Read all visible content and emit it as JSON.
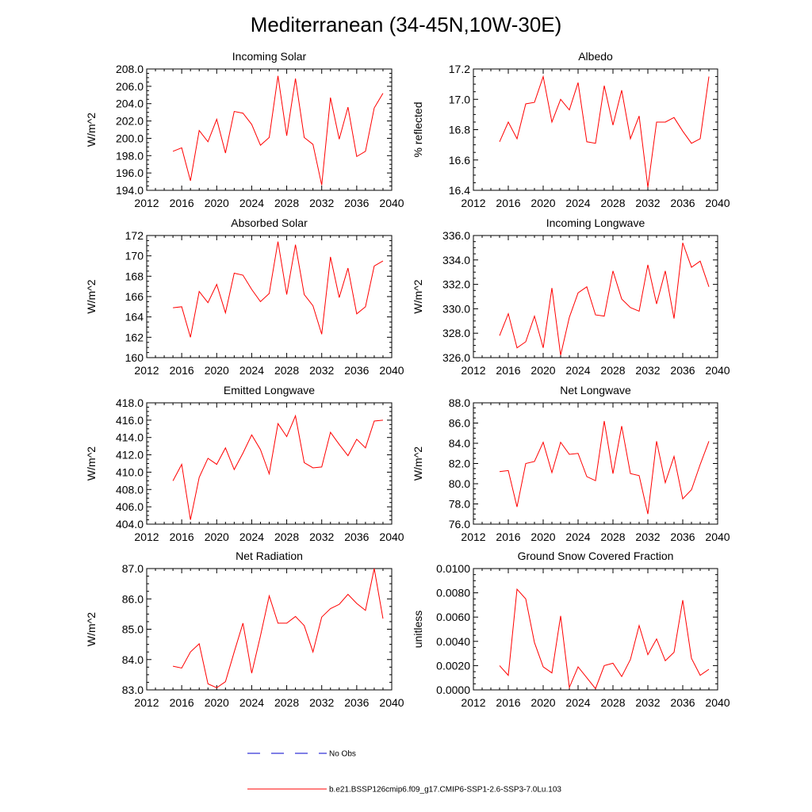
{
  "main_title": "Mediterranean (34-45N,10W-30E)",
  "colors": {
    "model": "#ff0000",
    "obs": "#0000cd",
    "axes": "#000000"
  },
  "x_axis": {
    "min": 2012,
    "max": 2040,
    "ticks": [
      2012,
      2016,
      2020,
      2024,
      2028,
      2032,
      2036,
      2040
    ]
  },
  "legend": {
    "obs_label": "No Obs",
    "model_label": "b.e21.BSSP126cmip6.f09_g17.CMIP6-SSP1-2.6-SSP3-7.0Lu.103"
  },
  "chart_data": [
    {
      "type": "line",
      "title": "Incoming Solar",
      "ylabel": "W/m^2",
      "ylim": [
        194,
        208
      ],
      "yticks": [
        "194.0",
        "196.0",
        "198.0",
        "200.0",
        "202.0",
        "204.0",
        "206.0",
        "208.0"
      ],
      "x": [
        2015,
        2016,
        2017,
        2018,
        2019,
        2020,
        2021,
        2022,
        2023,
        2024,
        2025,
        2026,
        2027,
        2028,
        2029,
        2030,
        2031,
        2032,
        2033,
        2034,
        2035,
        2036,
        2037,
        2038,
        2039
      ],
      "values": [
        198.5,
        198.9,
        195.1,
        200.9,
        199.6,
        202.2,
        198.3,
        203.1,
        202.9,
        201.6,
        199.2,
        200.1,
        207.2,
        200.3,
        206.9,
        200.1,
        199.3,
        194.6,
        204.7,
        199.9,
        203.6,
        197.9,
        198.5,
        203.5,
        205.2
      ]
    },
    {
      "type": "line",
      "title": "Albedo",
      "ylabel": "% reflected",
      "ylim": [
        16.4,
        17.2
      ],
      "yticks": [
        "16.4",
        "16.6",
        "16.8",
        "17.0",
        "17.2"
      ],
      "x": [
        2015,
        2016,
        2017,
        2018,
        2019,
        2020,
        2021,
        2022,
        2023,
        2024,
        2025,
        2026,
        2027,
        2028,
        2029,
        2030,
        2031,
        2032,
        2033,
        2034,
        2035,
        2036,
        2037,
        2038,
        2039
      ],
      "values": [
        16.72,
        16.85,
        16.74,
        16.97,
        16.98,
        17.15,
        16.85,
        17.0,
        16.93,
        17.11,
        16.72,
        16.71,
        17.09,
        16.83,
        17.06,
        16.74,
        16.89,
        16.42,
        16.85,
        16.85,
        16.88,
        16.79,
        16.71,
        16.74,
        17.15
      ]
    },
    {
      "type": "line",
      "title": "Absorbed Solar",
      "ylabel": "W/m^2",
      "ylim": [
        160,
        172
      ],
      "yticks": [
        "160",
        "162",
        "164",
        "166",
        "168",
        "170",
        "172"
      ],
      "x": [
        2015,
        2016,
        2017,
        2018,
        2019,
        2020,
        2021,
        2022,
        2023,
        2024,
        2025,
        2026,
        2027,
        2028,
        2029,
        2030,
        2031,
        2032,
        2033,
        2034,
        2035,
        2036,
        2037,
        2038,
        2039
      ],
      "values": [
        164.9,
        165.0,
        162.0,
        166.5,
        165.4,
        167.2,
        164.4,
        168.3,
        168.1,
        166.7,
        165.5,
        166.3,
        171.4,
        166.2,
        171.1,
        166.2,
        165.1,
        162.3,
        169.9,
        165.9,
        168.8,
        164.3,
        165.0,
        169.0,
        169.5
      ]
    },
    {
      "type": "line",
      "title": "Incoming Longwave",
      "ylabel": "W/m^2",
      "ylim": [
        326,
        336
      ],
      "yticks": [
        "326.0",
        "328.0",
        "330.0",
        "332.0",
        "334.0",
        "336.0"
      ],
      "x": [
        2015,
        2016,
        2017,
        2018,
        2019,
        2020,
        2021,
        2022,
        2023,
        2024,
        2025,
        2026,
        2027,
        2028,
        2029,
        2030,
        2031,
        2032,
        2033,
        2034,
        2035,
        2036,
        2037,
        2038,
        2039
      ],
      "values": [
        327.8,
        329.6,
        326.8,
        327.3,
        329.4,
        326.8,
        331.7,
        326.2,
        329.3,
        331.3,
        331.8,
        329.5,
        329.4,
        333.1,
        330.8,
        330.1,
        329.8,
        333.6,
        330.4,
        333.1,
        329.2,
        335.4,
        333.4,
        333.9,
        331.8
      ]
    },
    {
      "type": "line",
      "title": "Emitted Longwave",
      "ylabel": "W/m^2",
      "ylim": [
        404,
        418
      ],
      "yticks": [
        "404.0",
        "406.0",
        "408.0",
        "410.0",
        "412.0",
        "414.0",
        "416.0",
        "418.0"
      ],
      "x": [
        2015,
        2016,
        2017,
        2018,
        2019,
        2020,
        2021,
        2022,
        2023,
        2024,
        2025,
        2026,
        2027,
        2028,
        2029,
        2030,
        2031,
        2032,
        2033,
        2034,
        2035,
        2036,
        2037,
        2038,
        2039
      ],
      "values": [
        409.0,
        410.9,
        404.5,
        409.4,
        411.6,
        410.9,
        412.8,
        410.3,
        412.2,
        414.3,
        412.6,
        409.8,
        415.6,
        414.1,
        416.5,
        411.1,
        410.5,
        410.6,
        414.6,
        413.2,
        411.9,
        413.8,
        412.8,
        415.9,
        416.0
      ]
    },
    {
      "type": "line",
      "title": "Net Longwave",
      "ylabel": "W/m^2",
      "ylim": [
        76,
        88
      ],
      "yticks": [
        "76.0",
        "78.0",
        "80.0",
        "82.0",
        "84.0",
        "86.0",
        "88.0"
      ],
      "x": [
        2015,
        2016,
        2017,
        2018,
        2019,
        2020,
        2021,
        2022,
        2023,
        2024,
        2025,
        2026,
        2027,
        2028,
        2029,
        2030,
        2031,
        2032,
        2033,
        2034,
        2035,
        2036,
        2037,
        2038,
        2039
      ],
      "values": [
        81.2,
        81.3,
        77.7,
        82.0,
        82.2,
        84.1,
        81.1,
        84.1,
        82.9,
        83.0,
        80.7,
        80.3,
        86.2,
        81.0,
        85.7,
        81.0,
        80.8,
        77.0,
        84.2,
        80.1,
        82.7,
        78.5,
        79.4,
        81.9,
        84.2
      ]
    },
    {
      "type": "line",
      "title": "Net Radiation",
      "ylabel": "W/m^2",
      "ylim": [
        83,
        87
      ],
      "yticks": [
        "83.0",
        "84.0",
        "85.0",
        "86.0",
        "87.0"
      ],
      "x": [
        2015,
        2016,
        2017,
        2018,
        2019,
        2020,
        2021,
        2022,
        2023,
        2024,
        2025,
        2026,
        2027,
        2028,
        2029,
        2030,
        2031,
        2032,
        2033,
        2034,
        2035,
        2036,
        2037,
        2038,
        2039
      ],
      "values": [
        83.78,
        83.72,
        84.25,
        84.52,
        83.2,
        83.07,
        83.27,
        84.25,
        85.2,
        83.55,
        84.78,
        86.1,
        85.2,
        85.2,
        85.42,
        85.12,
        84.25,
        85.4,
        85.68,
        85.82,
        86.15,
        85.85,
        85.62,
        87.0,
        85.35
      ]
    },
    {
      "type": "line",
      "title": "Ground Snow Covered Fraction",
      "ylabel": "unitless",
      "ylim": [
        0,
        0.01
      ],
      "yticks": [
        "0.0000",
        "0.0020",
        "0.0040",
        "0.0060",
        "0.0080",
        "0.0100"
      ],
      "x": [
        2015,
        2016,
        2017,
        2018,
        2019,
        2020,
        2021,
        2022,
        2023,
        2024,
        2025,
        2026,
        2027,
        2028,
        2029,
        2030,
        2031,
        2032,
        2033,
        2034,
        2035,
        2036,
        2037,
        2038,
        2039
      ],
      "values": [
        0.002,
        0.0012,
        0.0083,
        0.0075,
        0.0039,
        0.0019,
        0.0014,
        0.0061,
        0.0002,
        0.0019,
        0.001,
        0.0001,
        0.002,
        0.0022,
        0.0011,
        0.0025,
        0.0053,
        0.0029,
        0.0042,
        0.0024,
        0.0031,
        0.0074,
        0.0026,
        0.0012,
        0.0017
      ]
    }
  ]
}
